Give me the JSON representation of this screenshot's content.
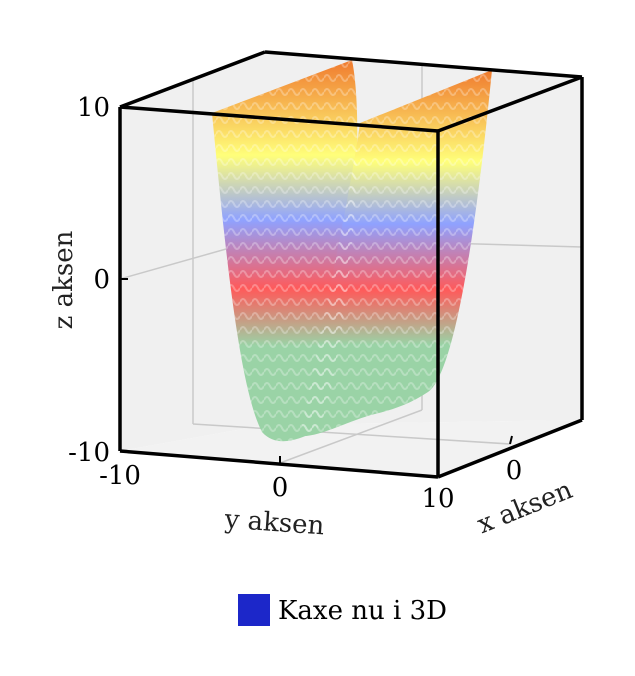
{
  "chart_data": {
    "type": "surface",
    "title": "",
    "xlabel": "x aksen",
    "ylabel": "y aksen",
    "zlabel": "z aksen",
    "y_ticks": [
      "-10",
      "0",
      "10"
    ],
    "x_ticks": [
      "0"
    ],
    "z_ticks": [
      "-10",
      "0",
      "10"
    ],
    "xlim": [
      -10,
      10
    ],
    "ylim": [
      -10,
      10
    ],
    "zlim": [
      -10,
      10
    ],
    "grid": true,
    "colormap": [
      "#9ad3a6",
      "#ff5a5a",
      "#8fa2ff",
      "#ffff7a",
      "#f07a2e"
    ],
    "legend": {
      "placement": "bottom-center",
      "entries": [
        {
          "label": "Kaxe nu i 3D",
          "color": "#1c27c9"
        }
      ]
    }
  }
}
